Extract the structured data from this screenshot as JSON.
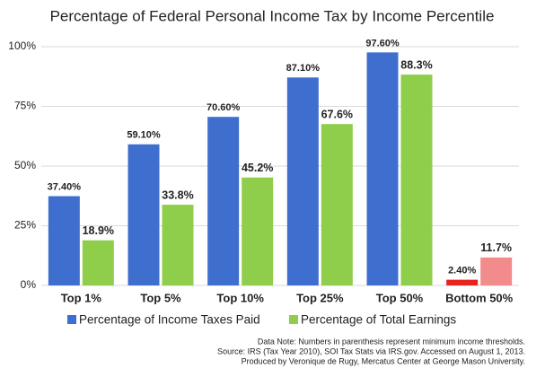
{
  "chart_data": {
    "type": "bar",
    "title": "Percentage of Federal Personal Income Tax by Income Percentile",
    "categories": [
      "Top 1%",
      "Top 5%",
      "Top 10%",
      "Top 25%",
      "Top 50%",
      "Bottom 50%"
    ],
    "series": [
      {
        "name": "Percentage of Income Taxes Paid",
        "color": "#3f6fce",
        "colors": [
          "#3f6fce",
          "#3f6fce",
          "#3f6fce",
          "#3f6fce",
          "#3f6fce",
          "#e8231e"
        ],
        "values": [
          37.4,
          59.1,
          70.6,
          87.1,
          97.6,
          2.4
        ],
        "value_labels": [
          "37.40%",
          "59.10%",
          "70.60%",
          "87.10%",
          "97.60%",
          "2.40%"
        ]
      },
      {
        "name": "Percentage of Total Earnings",
        "color": "#8fce4a",
        "colors": [
          "#8fce4a",
          "#8fce4a",
          "#8fce4a",
          "#8fce4a",
          "#8fce4a",
          "#f28b8b"
        ],
        "values": [
          18.9,
          33.8,
          45.2,
          67.6,
          88.3,
          11.7
        ],
        "value_labels": [
          "18.9%",
          "33.8%",
          "45.2%",
          "67.6%",
          "88.3%",
          "11.7%"
        ]
      }
    ],
    "ylim": [
      0,
      100
    ],
    "yticks": [
      {
        "value": 0,
        "label": "0%"
      },
      {
        "value": 25,
        "label": "25%"
      },
      {
        "value": 50,
        "label": "50%"
      },
      {
        "value": 75,
        "label": "75%"
      },
      {
        "value": 100,
        "label": "100%"
      }
    ],
    "grid": true,
    "legend": "bottom",
    "notes": [
      "Data Note: Numbers in parenthesis represent minimum income thresholds.",
      "Source: IRS (Tax Year 2010), SOI Tax Stats via IRS.gov. Accessed on August 1, 2013.",
      "Produced by Veronique de Rugy, Mercatus Center at George Mason University."
    ]
  }
}
